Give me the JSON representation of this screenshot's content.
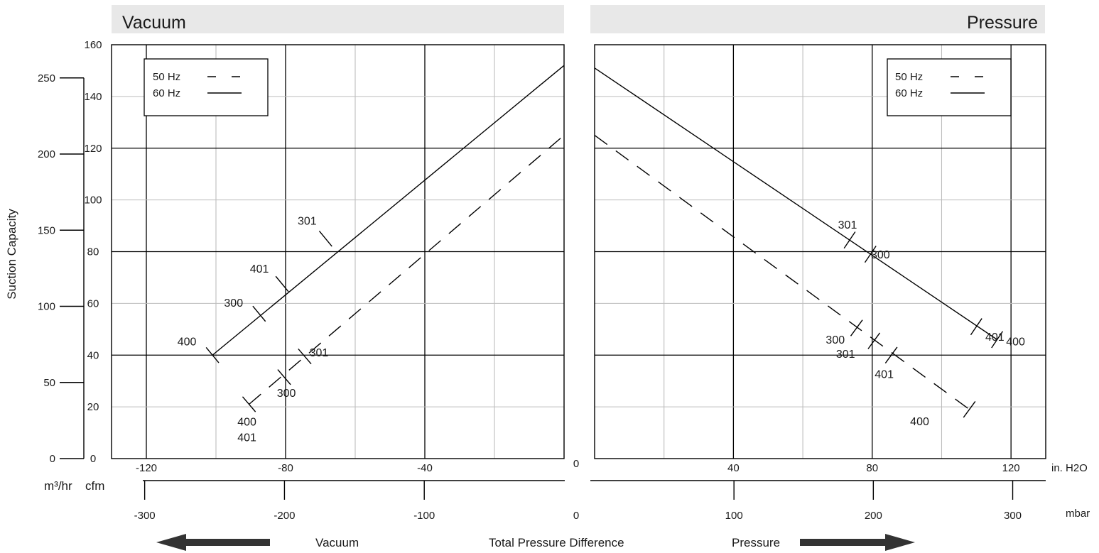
{
  "headers": {
    "left": "Vacuum",
    "right": "Pressure"
  },
  "legend": {
    "hz50": "50 Hz",
    "hz60": "60 Hz"
  },
  "bottom": {
    "unit_inh2o": "in. H2O",
    "unit_mbar": "mbar",
    "vacuum": "Vacuum",
    "total": "Total Pressure Difference",
    "pressure": "Pressure",
    "zero": "0"
  },
  "y_axis": {
    "title": "Suction Capacity",
    "m3": "m³/hr",
    "cfm": "cfm"
  },
  "colors": {
    "header_bg": "#e8e8e8",
    "major_grid": "#000000",
    "minor_grid": "#bdbdbd"
  },
  "chart_data": [
    {
      "type": "line",
      "panel": "Vacuum",
      "x_inh2o": {
        "range": [
          -130,
          0
        ],
        "ticks": [
          -120,
          -80,
          -40
        ]
      },
      "x_mbar": {
        "range": [
          -323.7,
          0
        ],
        "ticks": [
          -300,
          -200,
          -100
        ]
      },
      "y_cfm": {
        "range": [
          0,
          160
        ],
        "ticks": [
          0,
          20,
          40,
          60,
          80,
          100,
          120,
          140,
          160
        ]
      },
      "y_m3hr": {
        "range": [
          0,
          271.8
        ],
        "ticks": [
          0,
          50,
          100,
          150,
          200,
          250
        ]
      },
      "grid": true,
      "legend_position": "top-left",
      "series": [
        {
          "name": "60 Hz",
          "style": "solid",
          "points": [
            [
              -101,
              40
            ],
            [
              0,
              152
            ]
          ],
          "markers": [
            {
              "label": "400",
              "x": -101,
              "y": 40
            },
            {
              "label": "300",
              "x": -87.6,
              "y": 56
            },
            {
              "label": "401",
              "x": -81,
              "y": 67.5
            },
            {
              "label": "301",
              "x": -68.5,
              "y": 85
            }
          ]
        },
        {
          "name": "50 Hz",
          "style": "dashed",
          "points": [
            [
              -90.5,
              21
            ],
            [
              0,
              125
            ]
          ],
          "markers": [
            {
              "label": "400",
              "x": -90.5,
              "y": 21
            },
            {
              "label": "401",
              "x": -90.5,
              "y": 21
            },
            {
              "label": "300",
              "x": -80.4,
              "y": 31.5
            },
            {
              "label": "301",
              "x": -74.5,
              "y": 39.5
            }
          ]
        }
      ]
    },
    {
      "type": "line",
      "panel": "Pressure",
      "x_inh2o": {
        "range": [
          0,
          130
        ],
        "ticks": [
          0,
          40,
          80,
          120
        ]
      },
      "x_mbar": {
        "range": [
          0,
          323.7
        ],
        "ticks": [
          0,
          100,
          200,
          300
        ]
      },
      "y_cfm": {
        "range": [
          0,
          160
        ]
      },
      "grid": true,
      "legend_position": "top-right",
      "series": [
        {
          "name": "60 Hz",
          "style": "solid",
          "points": [
            [
              0,
              151
            ],
            [
              116,
              46
            ]
          ],
          "markers": [
            {
              "label": "301",
              "x": 73.5,
              "y": 84.5
            },
            {
              "label": "300",
              "x": 79.5,
              "y": 79
            },
            {
              "label": "401",
              "x": 110,
              "y": 51
            },
            {
              "label": "400",
              "x": 116,
              "y": 46
            }
          ]
        },
        {
          "name": "50 Hz",
          "style": "dashed",
          "points": [
            [
              0,
              125
            ],
            [
              108,
              19
            ]
          ],
          "markers": [
            {
              "label": "300",
              "x": 75.5,
              "y": 50.5
            },
            {
              "label": "301",
              "x": 80.5,
              "y": 45.5
            },
            {
              "label": "401",
              "x": 85.5,
              "y": 40
            },
            {
              "label": "400",
              "x": 108,
              "y": 19
            }
          ]
        }
      ]
    }
  ]
}
